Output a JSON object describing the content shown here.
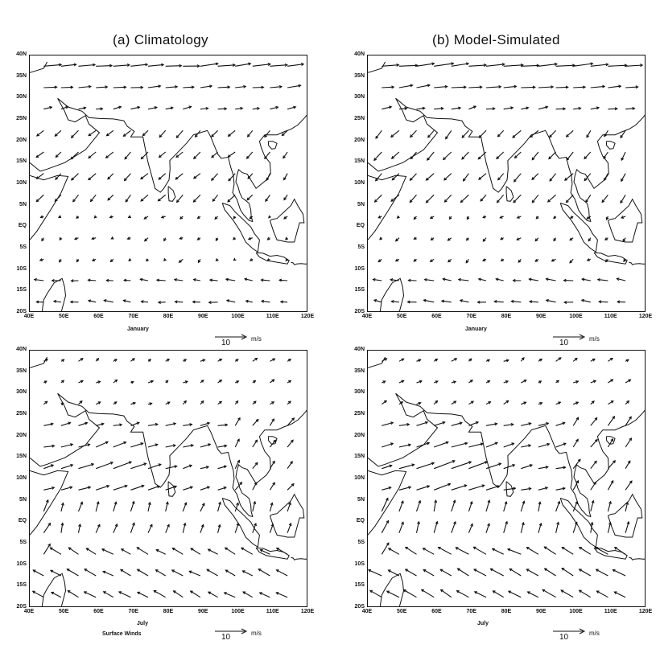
{
  "titles": {
    "a": "(a) Climatology",
    "b": "(b) Model-Simulated"
  },
  "lat_labels": [
    "40N",
    "35N",
    "30N",
    "25N",
    "20N",
    "15N",
    "10N",
    "5N",
    "EQ",
    "5S",
    "10S",
    "15S",
    "20S"
  ],
  "lon_labels": [
    "40E",
    "50E",
    "60E",
    "70E",
    "80E",
    "90E",
    "100E",
    "110E",
    "120E"
  ],
  "panels": [
    {
      "month": "January",
      "ref_value": "10",
      "ref_unit": "m/s"
    },
    {
      "month": "January",
      "ref_value": "10",
      "ref_unit": "m/s"
    },
    {
      "month": "July",
      "ref_value": "10",
      "ref_unit": "m/s"
    },
    {
      "month": "July",
      "ref_value": "10",
      "ref_unit": "m/s"
    }
  ],
  "footnote": "Surface Winds",
  "map": {
    "lon_range": [
      40,
      120
    ],
    "lat_range": [
      -20,
      40
    ],
    "vector_scale_mps": 10,
    "style": "wind vectors over coastlines"
  }
}
